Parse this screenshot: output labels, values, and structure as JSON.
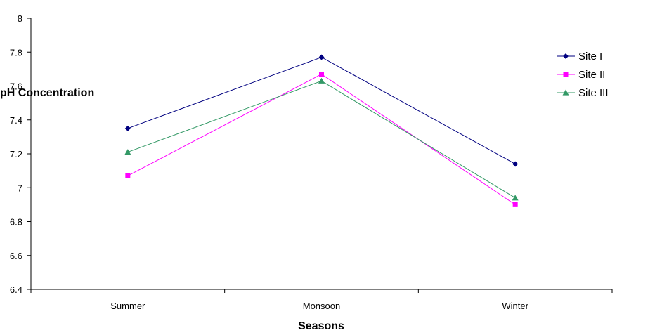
{
  "chart_data": {
    "type": "line",
    "title": "",
    "xlabel": "Seasons",
    "ylabel": "pH Concentration",
    "categories": [
      "Summer",
      "Monsoon",
      "Winter"
    ],
    "ylim": [
      6.4,
      8
    ],
    "yticks": [
      "6.4",
      "6.6",
      "6.8",
      "7",
      "7.2",
      "7.4",
      "7.6",
      "7.8",
      "8"
    ],
    "grid": false,
    "legend_position": "right",
    "series": [
      {
        "name": "Site I",
        "values": [
          7.35,
          7.77,
          7.14
        ],
        "color": "#000080",
        "marker": "diamond"
      },
      {
        "name": "Site II",
        "values": [
          7.07,
          7.67,
          6.9
        ],
        "color": "#ff00ff",
        "marker": "square"
      },
      {
        "name": "Site III",
        "values": [
          7.21,
          7.63,
          6.94
        ],
        "color": "#339966",
        "marker": "triangle"
      }
    ]
  }
}
